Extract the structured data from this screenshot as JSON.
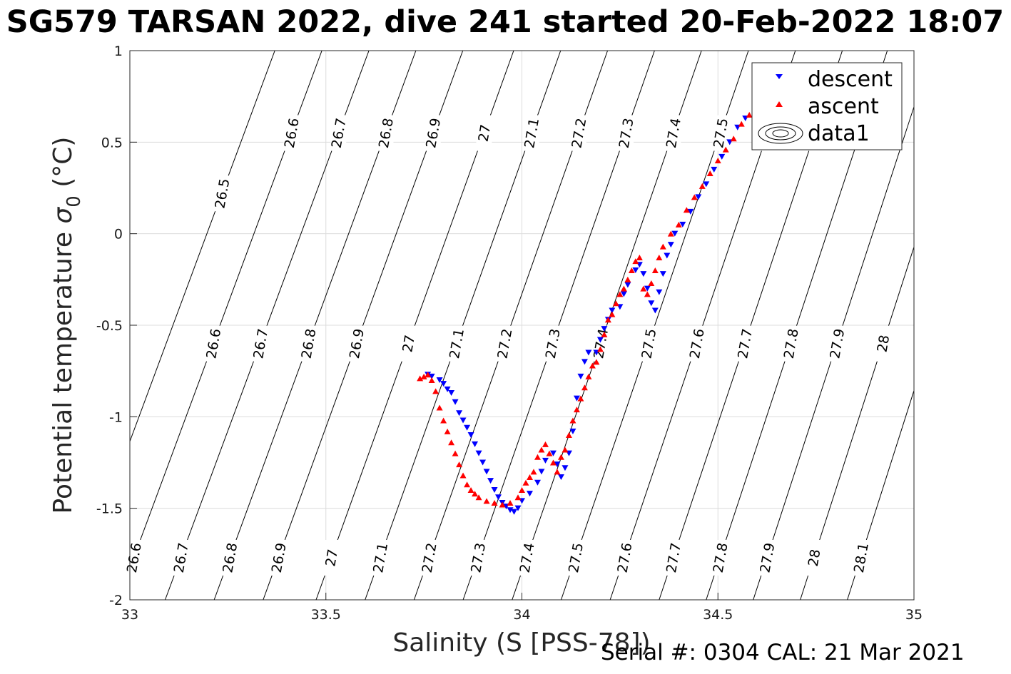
{
  "title": "SG579 TARSAN 2022, dive 241 started 20-Feb-2022 18:07",
  "footer": "Serial #: 0304  CAL: 21 Mar 2021",
  "chart_data": {
    "type": "scatter",
    "title": "SG579 TARSAN 2022, dive 241 started 20-Feb-2022 18:07",
    "xlabel": "Salinity (S [PSS-78])",
    "ylabel_main": "Potential temperature ",
    "ylabel_symbol": "σ",
    "ylabel_subscript": "0",
    "ylabel_unit": " (°C)",
    "xlim": [
      33,
      35
    ],
    "ylim": [
      -2,
      1
    ],
    "xticks": [
      "33",
      "33.5",
      "34",
      "34.5",
      "35"
    ],
    "yticks": [
      "-2",
      "-1.5",
      "-1",
      "-0.5",
      "0",
      "0.5",
      "1"
    ],
    "xtick_values": [
      33,
      33.5,
      34,
      34.5,
      35
    ],
    "ytick_values": [
      -2,
      -1.5,
      -1,
      -0.5,
      0,
      0.5,
      1
    ],
    "grid": true,
    "legend_position": "top-right",
    "legend": [
      "descent",
      "ascent",
      "data1"
    ],
    "colors": {
      "descent": "#0000ff",
      "ascent": "#ff0000",
      "contour": "#000000",
      "grid": "#dcdcdc"
    },
    "density_contours": [
      {
        "label": "26.5",
        "bottom_x": 32.85,
        "slope": 0.0495
      },
      {
        "label": "26.6",
        "bottom_x": 32.97,
        "slope": 0.0495
      },
      {
        "label": "26.7",
        "bottom_x": 33.09,
        "slope": 0.0495
      },
      {
        "label": "26.8",
        "bottom_x": 33.215,
        "slope": 0.049
      },
      {
        "label": "26.9",
        "bottom_x": 33.34,
        "slope": 0.0485
      },
      {
        "label": "27",
        "bottom_x": 33.475,
        "slope": 0.048
      },
      {
        "label": "27.1",
        "bottom_x": 33.6,
        "slope": 0.0475
      },
      {
        "label": "27.2",
        "bottom_x": 33.725,
        "slope": 0.047
      },
      {
        "label": "27.3",
        "bottom_x": 33.85,
        "slope": 0.0465
      },
      {
        "label": "27.4",
        "bottom_x": 33.975,
        "slope": 0.046
      },
      {
        "label": "27.5",
        "bottom_x": 34.1,
        "slope": 0.0455
      },
      {
        "label": "27.6",
        "bottom_x": 34.225,
        "slope": 0.045
      },
      {
        "label": "27.7",
        "bottom_x": 34.35,
        "slope": 0.0445
      },
      {
        "label": "27.8",
        "bottom_x": 34.47,
        "slope": 0.044
      },
      {
        "label": "27.9",
        "bottom_x": 34.59,
        "slope": 0.0435
      },
      {
        "label": "28",
        "bottom_x": 34.71,
        "slope": 0.043
      },
      {
        "label": "28.1",
        "bottom_x": 34.83,
        "slope": 0.0425
      }
    ],
    "label_rows": [
      {
        "y": 0.55,
        "labels": [
          "26.6",
          "26.7",
          "26.8",
          "26.9",
          "27",
          "27.1",
          "27.2",
          "27.3",
          "27.4",
          "27.5",
          "27.6",
          "27.7"
        ]
      },
      {
        "y": -0.6,
        "labels": [
          "26.6",
          "26.7",
          "26.8",
          "26.9",
          "27",
          "27.1",
          "27.2",
          "27.3",
          "27.4",
          "27.5",
          "27.6",
          "27.7",
          "27.8",
          "27.9",
          "28",
          "28.1"
        ]
      },
      {
        "y": -1.77,
        "labels": [
          "26.6",
          "26.7",
          "26.8",
          "26.9",
          "27",
          "27.1",
          "27.2",
          "27.3",
          "27.4",
          "27.5",
          "27.6",
          "27.7",
          "27.8",
          "27.9",
          "28",
          "28.1"
        ]
      },
      {
        "y": 0.22,
        "labels": [
          "26.5"
        ]
      }
    ],
    "series": [
      {
        "name": "descent",
        "marker": "triangle-down",
        "color": "#0000ff",
        "points": [
          [
            33.76,
            -0.77
          ],
          [
            33.77,
            -0.78
          ],
          [
            33.79,
            -0.8
          ],
          [
            33.8,
            -0.82
          ],
          [
            33.81,
            -0.85
          ],
          [
            33.82,
            -0.87
          ],
          [
            33.83,
            -0.92
          ],
          [
            33.84,
            -0.98
          ],
          [
            33.85,
            -1.02
          ],
          [
            33.86,
            -1.06
          ],
          [
            33.87,
            -1.1
          ],
          [
            33.88,
            -1.15
          ],
          [
            33.89,
            -1.2
          ],
          [
            33.9,
            -1.25
          ],
          [
            33.91,
            -1.3
          ],
          [
            33.92,
            -1.35
          ],
          [
            33.93,
            -1.4
          ],
          [
            33.94,
            -1.44
          ],
          [
            33.95,
            -1.47
          ],
          [
            33.96,
            -1.49
          ],
          [
            33.97,
            -1.51
          ],
          [
            33.98,
            -1.52
          ],
          [
            33.99,
            -1.5
          ],
          [
            34.0,
            -1.46
          ],
          [
            34.02,
            -1.42
          ],
          [
            34.04,
            -1.36
          ],
          [
            34.05,
            -1.3
          ],
          [
            34.06,
            -1.24
          ],
          [
            34.08,
            -1.2
          ],
          [
            34.09,
            -1.26
          ],
          [
            34.1,
            -1.33
          ],
          [
            34.11,
            -1.28
          ],
          [
            34.12,
            -1.2
          ],
          [
            34.13,
            -1.08
          ],
          [
            34.14,
            -0.9
          ],
          [
            34.15,
            -0.78
          ],
          [
            34.16,
            -0.7
          ],
          [
            34.17,
            -0.65
          ],
          [
            34.19,
            -0.65
          ],
          [
            34.2,
            -0.58
          ],
          [
            34.21,
            -0.52
          ],
          [
            34.22,
            -0.47
          ],
          [
            34.23,
            -0.42
          ],
          [
            34.25,
            -0.4
          ],
          [
            34.26,
            -0.33
          ],
          [
            34.27,
            -0.28
          ],
          [
            34.29,
            -0.2
          ],
          [
            34.3,
            -0.17
          ],
          [
            34.31,
            -0.22
          ],
          [
            34.32,
            -0.3
          ],
          [
            34.33,
            -0.38
          ],
          [
            34.34,
            -0.42
          ],
          [
            34.35,
            -0.32
          ],
          [
            34.36,
            -0.22
          ],
          [
            34.37,
            -0.12
          ],
          [
            34.38,
            -0.06
          ],
          [
            34.39,
            0.0
          ],
          [
            34.41,
            0.05
          ],
          [
            34.43,
            0.12
          ],
          [
            34.45,
            0.2
          ],
          [
            34.47,
            0.27
          ],
          [
            34.49,
            0.35
          ],
          [
            34.51,
            0.42
          ],
          [
            34.53,
            0.5
          ],
          [
            34.55,
            0.58
          ],
          [
            34.57,
            0.63
          ]
        ]
      },
      {
        "name": "ascent",
        "marker": "triangle-up",
        "color": "#ff0000",
        "points": [
          [
            33.74,
            -0.79
          ],
          [
            33.75,
            -0.78
          ],
          [
            33.76,
            -0.77
          ],
          [
            33.77,
            -0.8
          ],
          [
            33.78,
            -0.86
          ],
          [
            33.79,
            -0.95
          ],
          [
            33.8,
            -1.02
          ],
          [
            33.81,
            -1.08
          ],
          [
            33.82,
            -1.14
          ],
          [
            33.83,
            -1.2
          ],
          [
            33.84,
            -1.26
          ],
          [
            33.85,
            -1.32
          ],
          [
            33.86,
            -1.37
          ],
          [
            33.87,
            -1.4
          ],
          [
            33.88,
            -1.42
          ],
          [
            33.89,
            -1.44
          ],
          [
            33.91,
            -1.46
          ],
          [
            33.93,
            -1.47
          ],
          [
            33.95,
            -1.48
          ],
          [
            33.97,
            -1.47
          ],
          [
            33.99,
            -1.44
          ],
          [
            34.0,
            -1.4
          ],
          [
            34.01,
            -1.36
          ],
          [
            34.02,
            -1.33
          ],
          [
            34.03,
            -1.3
          ],
          [
            34.04,
            -1.22
          ],
          [
            34.05,
            -1.18
          ],
          [
            34.06,
            -1.15
          ],
          [
            34.07,
            -1.2
          ],
          [
            34.08,
            -1.25
          ],
          [
            34.09,
            -1.3
          ],
          [
            34.1,
            -1.22
          ],
          [
            34.11,
            -1.18
          ],
          [
            34.12,
            -1.1
          ],
          [
            34.13,
            -1.02
          ],
          [
            34.14,
            -0.96
          ],
          [
            34.15,
            -0.9
          ],
          [
            34.16,
            -0.84
          ],
          [
            34.17,
            -0.78
          ],
          [
            34.18,
            -0.72
          ],
          [
            34.19,
            -0.7
          ],
          [
            34.2,
            -0.63
          ],
          [
            34.21,
            -0.55
          ],
          [
            34.22,
            -0.47
          ],
          [
            34.23,
            -0.44
          ],
          [
            34.24,
            -0.38
          ],
          [
            34.25,
            -0.33
          ],
          [
            34.26,
            -0.3
          ],
          [
            34.27,
            -0.25
          ],
          [
            34.28,
            -0.2
          ],
          [
            34.29,
            -0.15
          ],
          [
            34.3,
            -0.13
          ],
          [
            34.31,
            -0.3
          ],
          [
            34.32,
            -0.33
          ],
          [
            34.33,
            -0.27
          ],
          [
            34.34,
            -0.2
          ],
          [
            34.35,
            -0.13
          ],
          [
            34.36,
            -0.07
          ],
          [
            34.38,
            0.0
          ],
          [
            34.4,
            0.05
          ],
          [
            34.42,
            0.13
          ],
          [
            34.44,
            0.2
          ],
          [
            34.46,
            0.26
          ],
          [
            34.48,
            0.33
          ],
          [
            34.5,
            0.4
          ],
          [
            34.52,
            0.46
          ],
          [
            34.54,
            0.52
          ],
          [
            34.56,
            0.6
          ],
          [
            34.58,
            0.65
          ]
        ]
      }
    ]
  }
}
